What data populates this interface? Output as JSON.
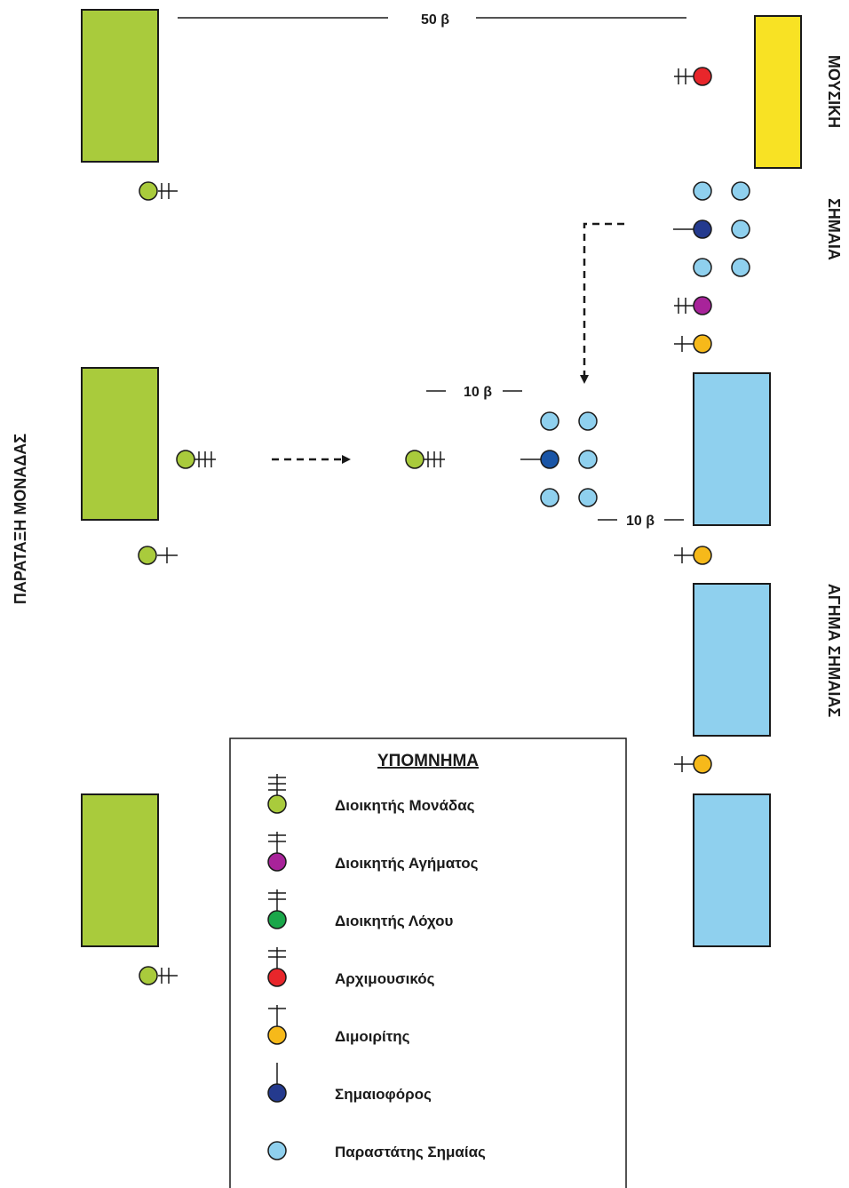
{
  "colors": {
    "unit_block": "#a9cb3c",
    "music_block": "#f8e224",
    "honor_guard_block": "#8fd0ee",
    "commander_unit": "#a9cb3c",
    "commander_guard": "#a8239a",
    "commander_company": "#1aa74a",
    "chief_musician": "#e8262b",
    "platoon_leader": "#f6b91a",
    "flag_bearer": "#243a8e",
    "flag_bearer_moved": "#1a55a6",
    "flag_escort": "#8fd0ee",
    "stroke": "#1a1a1a"
  },
  "labels": {
    "distance_top": "50 β",
    "distance_flag": "10 β",
    "distance_guard": "10 β",
    "music": "ΜΟΥΣΙΚΗ",
    "flag": "ΣΗΜΑΙΑ",
    "unit_formation": "ΠΑΡΑΤΑΞΗ ΜΟΝΑΔΑΣ",
    "honor_guard": "ΑΓΗΜΑ ΣΗΜΑΙΑΣ"
  },
  "legend": {
    "title": "ΥΠΟΜΝΗΜΑ",
    "items": [
      {
        "label": "Διοικητής Μονάδας",
        "color_key": "commander_unit",
        "bars": 3,
        "icon": "commander-unit-icon"
      },
      {
        "label": "Διοικητής Αγήματος",
        "color_key": "commander_guard",
        "bars": 2,
        "icon": "commander-guard-icon"
      },
      {
        "label": "Διοικητής Λόχου",
        "color_key": "commander_company",
        "bars": 2,
        "icon": "commander-company-icon"
      },
      {
        "label": "Αρχιμουσικός",
        "color_key": "chief_musician",
        "bars": 2,
        "icon": "chief-musician-icon"
      },
      {
        "label": "Διμοιρίτης",
        "color_key": "platoon_leader",
        "bars": 1,
        "icon": "platoon-leader-icon"
      },
      {
        "label": "Σημαιοφόρος",
        "color_key": "flag_bearer",
        "bars": 0,
        "icon": "flag-bearer-icon"
      },
      {
        "label": "Παραστάτης Σημαίας",
        "color_key": "flag_escort",
        "bars": -1,
        "icon": "flag-escort-icon"
      }
    ]
  }
}
